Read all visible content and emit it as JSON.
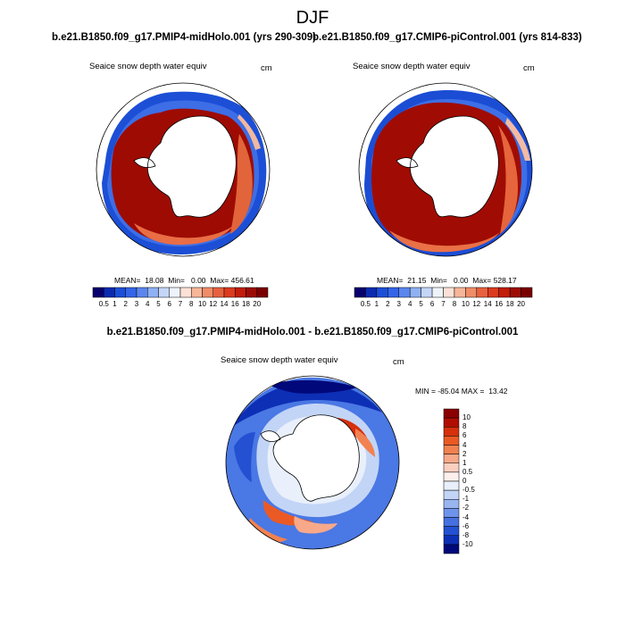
{
  "title": "DJF",
  "panels": [
    {
      "case_title": "b.e21.B1850.f09_g17.PMIP4-midHolo.001 (yrs 290-309)",
      "variable": "Seaice snow depth water equiv",
      "units": "cm",
      "stats": "MEAN=  18.08  Min=   0.00  Max= 456.61"
    },
    {
      "case_title": "b.e21.B1850.f09_g17.CMIP6-piControl.001 (yrs 814-833)",
      "variable": "Seaice snow depth water equiv",
      "units": "cm",
      "stats": "MEAN=  21.15  Min=   0.00  Max= 528.17"
    }
  ],
  "diff_panel": {
    "title": "b.e21.B1850.f09_g17.PMIP4-midHolo.001 - b.e21.B1850.f09_g17.CMIP6-piControl.001",
    "variable": "Seaice snow depth water equiv",
    "units": "cm",
    "stats": "MIN = -85.04 MAX =  13.42"
  },
  "colorbar_horizontal": {
    "labels": [
      "0.5",
      "1",
      "2",
      "3",
      "4",
      "5",
      "6",
      "7",
      "8",
      "10",
      "12",
      "14",
      "16",
      "18",
      "20"
    ],
    "colors": [
      "#08006e",
      "#0a2bb0",
      "#1b4fd8",
      "#3465e8",
      "#5a86ee",
      "#8fb0f2",
      "#c4d6f7",
      "#eef3fb",
      "#fbe1d6",
      "#f6b69a",
      "#f08c68",
      "#e8613f",
      "#dc3a1e",
      "#c21c0a",
      "#9c0c04",
      "#7a0000"
    ]
  },
  "colorbar_vertical": {
    "labels": [
      "10",
      "8",
      "6",
      "4",
      "2",
      "1",
      "0.5",
      "0",
      "-0.5",
      "-1",
      "-2",
      "-4",
      "-6",
      "-8",
      "-10"
    ],
    "colors": [
      "#8a0000",
      "#b00e02",
      "#d6300c",
      "#eb5a24",
      "#f28150",
      "#f7a98a",
      "#fbcfc0",
      "#fdf0ec",
      "#e9f0fb",
      "#c3d5f6",
      "#98b5f0",
      "#6e93ea",
      "#4670e0",
      "#2450d2",
      "#0d2fb5",
      "#00087a"
    ]
  }
}
